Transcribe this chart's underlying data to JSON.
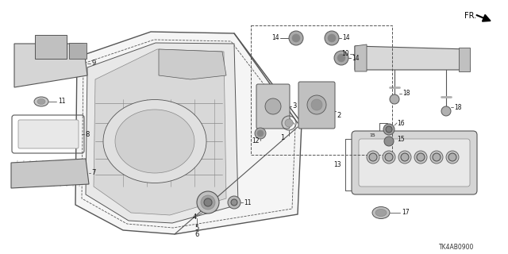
{
  "bg_color": "#ffffff",
  "line_color": "#555555",
  "label_color": "#111111",
  "part_code": "TK4AB0900",
  "fig_width": 6.4,
  "fig_height": 3.2,
  "dpi": 100
}
